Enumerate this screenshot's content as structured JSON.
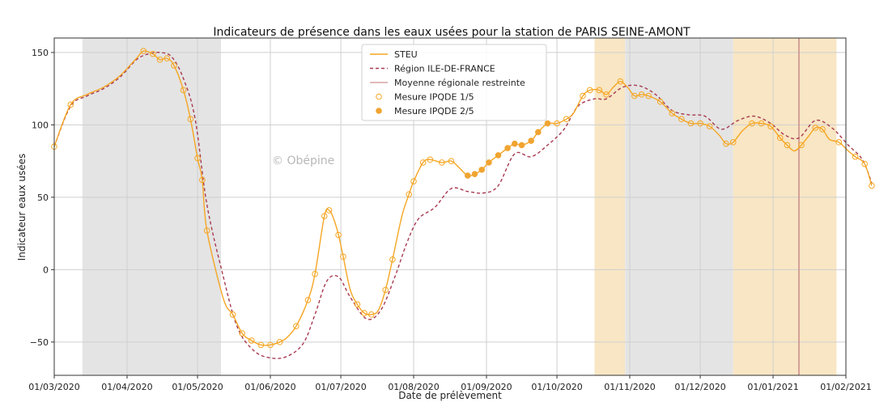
{
  "chart_data": {
    "type": "line",
    "title": "Indicateurs de présence dans les eaux usées pour la station de PARIS SEINE-AMONT",
    "xlabel": "Date de prélèvement",
    "ylabel": "Indicateur eaux usées",
    "watermark": "© Obépine",
    "x_range": [
      "2020-03-01",
      "2021-02-01"
    ],
    "ylim": [
      -73,
      160
    ],
    "y_ticks": [
      -50,
      0,
      50,
      100,
      150
    ],
    "y_tick_labels": [
      "−50",
      "0",
      "50",
      "100",
      "150"
    ],
    "x_ticks": [
      "2020-03-01",
      "2020-04-01",
      "2020-05-01",
      "2020-06-01",
      "2020-07-01",
      "2020-08-01",
      "2020-09-01",
      "2020-10-01",
      "2020-11-01",
      "2020-12-01",
      "2021-01-01",
      "2021-02-01"
    ],
    "x_tick_labels": [
      "01/03/2020",
      "01/04/2020",
      "01/05/2020",
      "01/06/2020",
      "01/07/2020",
      "01/08/2020",
      "01/09/2020",
      "01/10/2020",
      "01/11/2020",
      "01/12/2020",
      "01/01/2021",
      "01/02/2021"
    ],
    "grid": true,
    "legend_position": "top-center",
    "background_periods": [
      {
        "start": "2020-03-13",
        "end": "2020-05-11",
        "color": "#e4e4e4"
      },
      {
        "start": "2020-10-17",
        "end": "2020-10-30",
        "color": "#f8e6c4"
      },
      {
        "start": "2020-10-30",
        "end": "2020-12-15",
        "color": "#e4e4e4"
      },
      {
        "start": "2020-12-15",
        "end": "2021-01-28",
        "color": "#f8e6c4"
      }
    ],
    "vertical_line": {
      "date": "2021-01-12",
      "color": "#c98a8a"
    },
    "series": [
      {
        "name": "STEU",
        "style": "solid",
        "color": "#f5a623",
        "points": [
          [
            "2020-03-01",
            85
          ],
          [
            "2020-03-08",
            114
          ],
          [
            "2020-03-15",
            121
          ],
          [
            "2020-03-22",
            126
          ],
          [
            "2020-03-29",
            134
          ],
          [
            "2020-04-05",
            146
          ],
          [
            "2020-04-08",
            151
          ],
          [
            "2020-04-12",
            149
          ],
          [
            "2020-04-15",
            145
          ],
          [
            "2020-04-18",
            146
          ],
          [
            "2020-04-21",
            141
          ],
          [
            "2020-04-25",
            124
          ],
          [
            "2020-04-28",
            104
          ],
          [
            "2020-05-01",
            77
          ],
          [
            "2020-05-03",
            62
          ],
          [
            "2020-05-05",
            27
          ],
          [
            "2020-05-12",
            -20
          ],
          [
            "2020-05-16",
            -31
          ],
          [
            "2020-05-20",
            -44
          ],
          [
            "2020-05-24",
            -49
          ],
          [
            "2020-05-28",
            -52
          ],
          [
            "2020-06-01",
            -52
          ],
          [
            "2020-06-05",
            -50
          ],
          [
            "2020-06-08",
            -47
          ],
          [
            "2020-06-12",
            -39
          ],
          [
            "2020-06-17",
            -21
          ],
          [
            "2020-06-20",
            -3
          ],
          [
            "2020-06-24",
            37
          ],
          [
            "2020-06-26",
            41
          ],
          [
            "2020-06-28",
            35
          ],
          [
            "2020-06-30",
            24
          ],
          [
            "2020-07-02",
            9
          ],
          [
            "2020-07-05",
            -14
          ],
          [
            "2020-07-08",
            -24
          ],
          [
            "2020-07-11",
            -30
          ],
          [
            "2020-07-14",
            -31
          ],
          [
            "2020-07-17",
            -28
          ],
          [
            "2020-07-20",
            -14
          ],
          [
            "2020-07-23",
            7
          ],
          [
            "2020-07-27",
            37
          ],
          [
            "2020-07-30",
            52
          ],
          [
            "2020-08-01",
            61
          ],
          [
            "2020-08-05",
            74
          ],
          [
            "2020-08-08",
            76
          ],
          [
            "2020-08-13",
            74
          ],
          [
            "2020-08-17",
            75
          ],
          [
            "2020-08-20",
            71
          ],
          [
            "2020-08-24",
            65
          ],
          [
            "2020-08-27",
            66
          ],
          [
            "2020-08-30",
            69
          ],
          [
            "2020-09-02",
            74
          ],
          [
            "2020-09-06",
            79
          ],
          [
            "2020-09-10",
            84
          ],
          [
            "2020-09-13",
            87
          ],
          [
            "2020-09-16",
            86
          ],
          [
            "2020-09-20",
            89
          ],
          [
            "2020-09-23",
            95
          ],
          [
            "2020-09-27",
            101
          ],
          [
            "2020-10-01",
            101
          ],
          [
            "2020-10-05",
            104
          ],
          [
            "2020-10-08",
            108
          ],
          [
            "2020-10-12",
            120
          ],
          [
            "2020-10-15",
            124
          ],
          [
            "2020-10-19",
            124
          ],
          [
            "2020-10-22",
            121
          ],
          [
            "2020-10-25",
            126
          ],
          [
            "2020-10-28",
            130
          ],
          [
            "2020-10-31",
            126
          ],
          [
            "2020-11-03",
            120
          ],
          [
            "2020-11-06",
            121
          ],
          [
            "2020-11-09",
            120
          ],
          [
            "2020-11-14",
            116
          ],
          [
            "2020-11-19",
            108
          ],
          [
            "2020-11-23",
            104
          ],
          [
            "2020-11-27",
            101
          ],
          [
            "2020-12-01",
            101
          ],
          [
            "2020-12-05",
            99
          ],
          [
            "2020-12-09",
            93
          ],
          [
            "2020-12-12",
            87
          ],
          [
            "2020-12-15",
            88
          ],
          [
            "2020-12-19",
            96
          ],
          [
            "2020-12-23",
            101
          ],
          [
            "2020-12-27",
            101
          ],
          [
            "2020-12-31",
            99
          ],
          [
            "2021-01-04",
            91
          ],
          [
            "2021-01-07",
            86
          ],
          [
            "2021-01-10",
            82
          ],
          [
            "2021-01-13",
            86
          ],
          [
            "2021-01-16",
            92
          ],
          [
            "2021-01-19",
            98
          ],
          [
            "2021-01-22",
            97
          ],
          [
            "2021-01-25",
            90
          ],
          [
            "2021-01-29",
            88
          ],
          [
            "2021-02-02",
            82
          ],
          [
            "2021-02-05",
            78
          ],
          [
            "2021-02-09",
            73
          ],
          [
            "2021-02-12",
            58
          ]
        ]
      },
      {
        "name": "Région ILE-DE-FRANCE",
        "style": "dashed",
        "color": "#a83a50",
        "points": [
          [
            "2020-03-01",
            85
          ],
          [
            "2020-03-08",
            113
          ],
          [
            "2020-03-15",
            120
          ],
          [
            "2020-03-22",
            125
          ],
          [
            "2020-03-29",
            133
          ],
          [
            "2020-04-05",
            145
          ],
          [
            "2020-04-10",
            149
          ],
          [
            "2020-04-15",
            150
          ],
          [
            "2020-04-20",
            147
          ],
          [
            "2020-04-25",
            132
          ],
          [
            "2020-04-30",
            104
          ],
          [
            "2020-05-05",
            45
          ],
          [
            "2020-05-12",
            -5
          ],
          [
            "2020-05-18",
            -40
          ],
          [
            "2020-05-25",
            -56
          ],
          [
            "2020-06-01",
            -61
          ],
          [
            "2020-06-08",
            -60
          ],
          [
            "2020-06-15",
            -51
          ],
          [
            "2020-06-20",
            -31
          ],
          [
            "2020-06-25",
            -8
          ],
          [
            "2020-06-30",
            -5
          ],
          [
            "2020-07-05",
            -19
          ],
          [
            "2020-07-12",
            -34
          ],
          [
            "2020-07-18",
            -28
          ],
          [
            "2020-07-24",
            -5
          ],
          [
            "2020-07-29",
            18
          ],
          [
            "2020-08-03",
            35
          ],
          [
            "2020-08-10",
            43
          ],
          [
            "2020-08-17",
            56
          ],
          [
            "2020-08-24",
            54
          ],
          [
            "2020-08-31",
            53
          ],
          [
            "2020-09-06",
            58
          ],
          [
            "2020-09-13",
            80
          ],
          [
            "2020-09-20",
            78
          ],
          [
            "2020-09-27",
            86
          ],
          [
            "2020-10-04",
            97
          ],
          [
            "2020-10-10",
            113
          ],
          [
            "2020-10-17",
            118
          ],
          [
            "2020-10-22",
            118
          ],
          [
            "2020-10-29",
            126
          ],
          [
            "2020-11-05",
            127
          ],
          [
            "2020-11-12",
            121
          ],
          [
            "2020-11-19",
            110
          ],
          [
            "2020-11-26",
            107
          ],
          [
            "2020-12-03",
            106
          ],
          [
            "2020-12-10",
            97
          ],
          [
            "2020-12-17",
            103
          ],
          [
            "2020-12-24",
            106
          ],
          [
            "2020-12-31",
            101
          ],
          [
            "2021-01-06",
            93
          ],
          [
            "2021-01-12",
            91
          ],
          [
            "2021-01-19",
            103
          ],
          [
            "2021-01-26",
            98
          ],
          [
            "2021-02-02",
            86
          ],
          [
            "2021-02-08",
            76
          ],
          [
            "2021-02-12",
            60
          ]
        ]
      },
      {
        "name": "Moyenne régionale restreinte",
        "style": "solid",
        "color": "#d9a3a3",
        "points": []
      }
    ],
    "markers": [
      {
        "name": "Mesure IPQDE 1/5",
        "style": "hollow",
        "color": "#f5a623",
        "points": [
          [
            "2020-03-01",
            85
          ],
          [
            "2020-03-08",
            114
          ],
          [
            "2020-04-08",
            151
          ],
          [
            "2020-04-12",
            149
          ],
          [
            "2020-04-15",
            145
          ],
          [
            "2020-04-18",
            146
          ],
          [
            "2020-04-21",
            141
          ],
          [
            "2020-04-25",
            124
          ],
          [
            "2020-04-28",
            104
          ],
          [
            "2020-05-01",
            77
          ],
          [
            "2020-05-03",
            62
          ],
          [
            "2020-05-05",
            27
          ],
          [
            "2020-05-16",
            -31
          ],
          [
            "2020-05-20",
            -44
          ],
          [
            "2020-05-24",
            -49
          ],
          [
            "2020-05-28",
            -52
          ],
          [
            "2020-06-01",
            -52
          ],
          [
            "2020-06-05",
            -50
          ],
          [
            "2020-06-12",
            -39
          ],
          [
            "2020-06-17",
            -21
          ],
          [
            "2020-06-20",
            -3
          ],
          [
            "2020-06-24",
            37
          ],
          [
            "2020-06-26",
            41
          ],
          [
            "2020-06-30",
            24
          ],
          [
            "2020-07-02",
            9
          ],
          [
            "2020-07-08",
            -24
          ],
          [
            "2020-07-11",
            -30
          ],
          [
            "2020-07-14",
            -31
          ],
          [
            "2020-07-20",
            -14
          ],
          [
            "2020-07-23",
            7
          ],
          [
            "2020-07-30",
            52
          ],
          [
            "2020-08-01",
            61
          ],
          [
            "2020-08-05",
            74
          ],
          [
            "2020-08-08",
            76
          ],
          [
            "2020-08-13",
            74
          ],
          [
            "2020-08-17",
            75
          ],
          [
            "2020-10-01",
            101
          ],
          [
            "2020-10-05",
            104
          ],
          [
            "2020-10-12",
            120
          ],
          [
            "2020-10-15",
            124
          ],
          [
            "2020-10-19",
            124
          ],
          [
            "2020-10-22",
            121
          ],
          [
            "2020-10-28",
            130
          ],
          [
            "2020-11-03",
            120
          ],
          [
            "2020-11-06",
            121
          ],
          [
            "2020-11-09",
            120
          ],
          [
            "2020-11-14",
            116
          ],
          [
            "2020-11-19",
            108
          ],
          [
            "2020-11-23",
            104
          ],
          [
            "2020-11-27",
            101
          ],
          [
            "2020-12-01",
            101
          ],
          [
            "2020-12-05",
            99
          ],
          [
            "2020-12-12",
            87
          ],
          [
            "2020-12-15",
            88
          ],
          [
            "2020-12-23",
            101
          ],
          [
            "2020-12-27",
            101
          ],
          [
            "2020-12-31",
            99
          ],
          [
            "2021-01-04",
            91
          ],
          [
            "2021-01-07",
            86
          ],
          [
            "2021-01-13",
            86
          ],
          [
            "2021-01-19",
            98
          ],
          [
            "2021-01-22",
            97
          ],
          [
            "2021-01-29",
            88
          ],
          [
            "2021-02-05",
            78
          ],
          [
            "2021-02-09",
            73
          ],
          [
            "2021-02-12",
            58
          ]
        ]
      },
      {
        "name": "Mesure IPQDE 2/5",
        "style": "filled",
        "color": "#f0a431",
        "points": [
          [
            "2020-08-24",
            65
          ],
          [
            "2020-08-27",
            66
          ],
          [
            "2020-08-30",
            69
          ],
          [
            "2020-09-02",
            74
          ],
          [
            "2020-09-06",
            79
          ],
          [
            "2020-09-10",
            84
          ],
          [
            "2020-09-13",
            87
          ],
          [
            "2020-09-16",
            86
          ],
          [
            "2020-09-20",
            89
          ],
          [
            "2020-09-23",
            95
          ],
          [
            "2020-09-27",
            101
          ]
        ]
      }
    ]
  }
}
